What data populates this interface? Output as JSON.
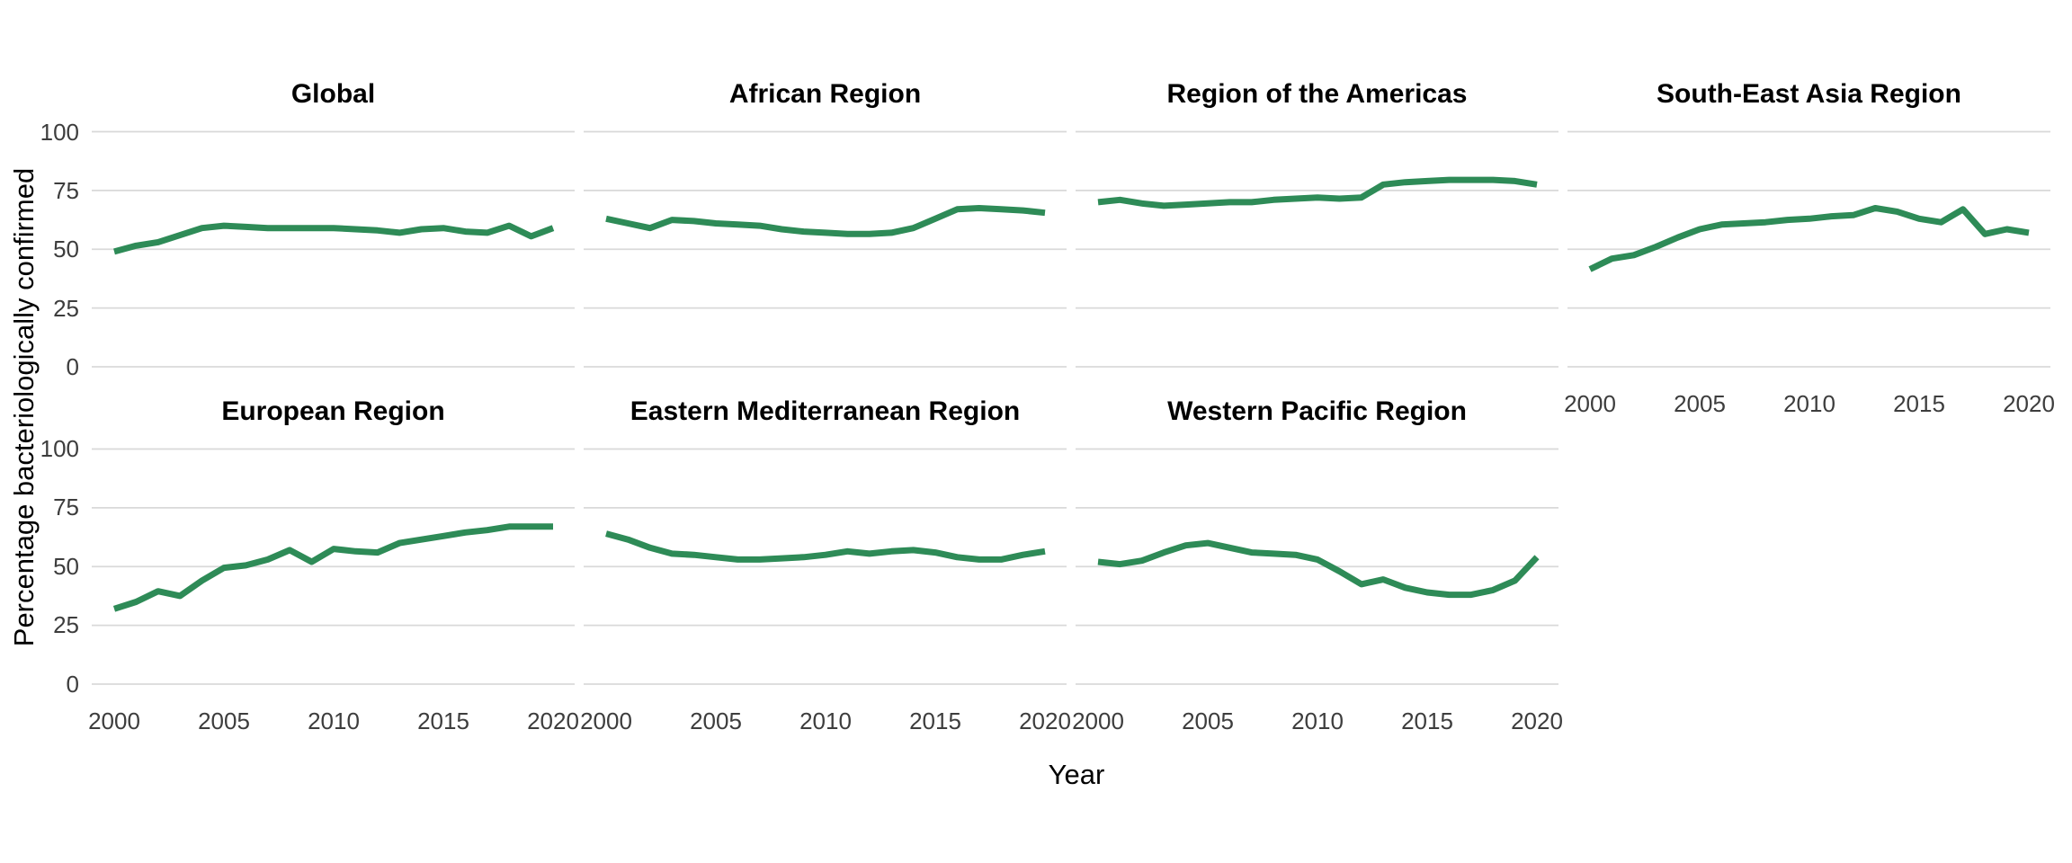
{
  "figure": {
    "x_axis_title": "Year",
    "y_axis_title": "Percentage bacteriologically confirmed"
  },
  "colors": {
    "line": "#2e8b57",
    "gridline": "#d9d9d9",
    "tick_text": "#3d3d3d",
    "title_text": "#000000"
  },
  "chart_data": {
    "type": "line",
    "x": [
      2000,
      2001,
      2002,
      2003,
      2004,
      2005,
      2006,
      2007,
      2008,
      2009,
      2010,
      2011,
      2012,
      2013,
      2014,
      2015,
      2016,
      2017,
      2018,
      2019,
      2020
    ],
    "x_ticks": [
      2000,
      2005,
      2010,
      2015,
      2020
    ],
    "y_ticks": [
      0,
      25,
      50,
      75,
      100
    ],
    "ylim": [
      0,
      100
    ],
    "xlabel": "Year",
    "ylabel": "Percentage bacteriologically confirmed",
    "grid": "horizontal-only",
    "legend": "none",
    "facet_columns": 4,
    "series": [
      {
        "name": "Global",
        "values": [
          49,
          51.5,
          53,
          56,
          59,
          60,
          59.5,
          59,
          59,
          59,
          59,
          58.5,
          58,
          57,
          58.5,
          59,
          57.5,
          57,
          60,
          55.5,
          59
        ]
      },
      {
        "name": "African Region",
        "values": [
          63,
          61,
          59,
          62.5,
          62,
          61,
          60.5,
          60,
          58.5,
          57.5,
          57,
          56.5,
          56.5,
          57,
          59,
          63,
          67,
          67.5,
          67,
          66.5,
          65.5
        ]
      },
      {
        "name": "Region of the Americas",
        "values": [
          70,
          71,
          69.5,
          68.5,
          69,
          69.5,
          70,
          70,
          71,
          71.5,
          72,
          71.5,
          72,
          77.5,
          78.5,
          79,
          79.5,
          79.5,
          79.5,
          79,
          77.5
        ]
      },
      {
        "name": "South-East Asia Region",
        "values": [
          41.5,
          46,
          47.5,
          51,
          55,
          58.5,
          60.5,
          61,
          61.5,
          62.5,
          63,
          64,
          64.5,
          67.5,
          66,
          63,
          61.5,
          67,
          56.5,
          58.5,
          57
        ]
      },
      {
        "name": "European Region",
        "values": [
          32,
          35,
          39.5,
          37.5,
          44,
          49.5,
          50.5,
          53,
          57,
          52,
          57.5,
          56.5,
          56,
          60,
          61.5,
          63,
          64.5,
          65.5,
          67,
          67,
          67
        ]
      },
      {
        "name": "Eastern Mediterranean Region",
        "values": [
          64,
          61.5,
          58,
          55.5,
          55,
          54,
          53,
          53,
          53.5,
          54,
          55,
          56.5,
          55.5,
          56.5,
          57,
          56,
          54,
          53,
          53,
          55,
          56.5
        ]
      },
      {
        "name": "Western Pacific Region",
        "values": [
          52,
          51,
          52.5,
          56,
          59,
          60,
          58,
          56,
          55.5,
          55,
          53,
          48,
          42.5,
          44.5,
          41,
          39,
          38,
          38,
          40,
          44,
          54
        ]
      }
    ]
  }
}
